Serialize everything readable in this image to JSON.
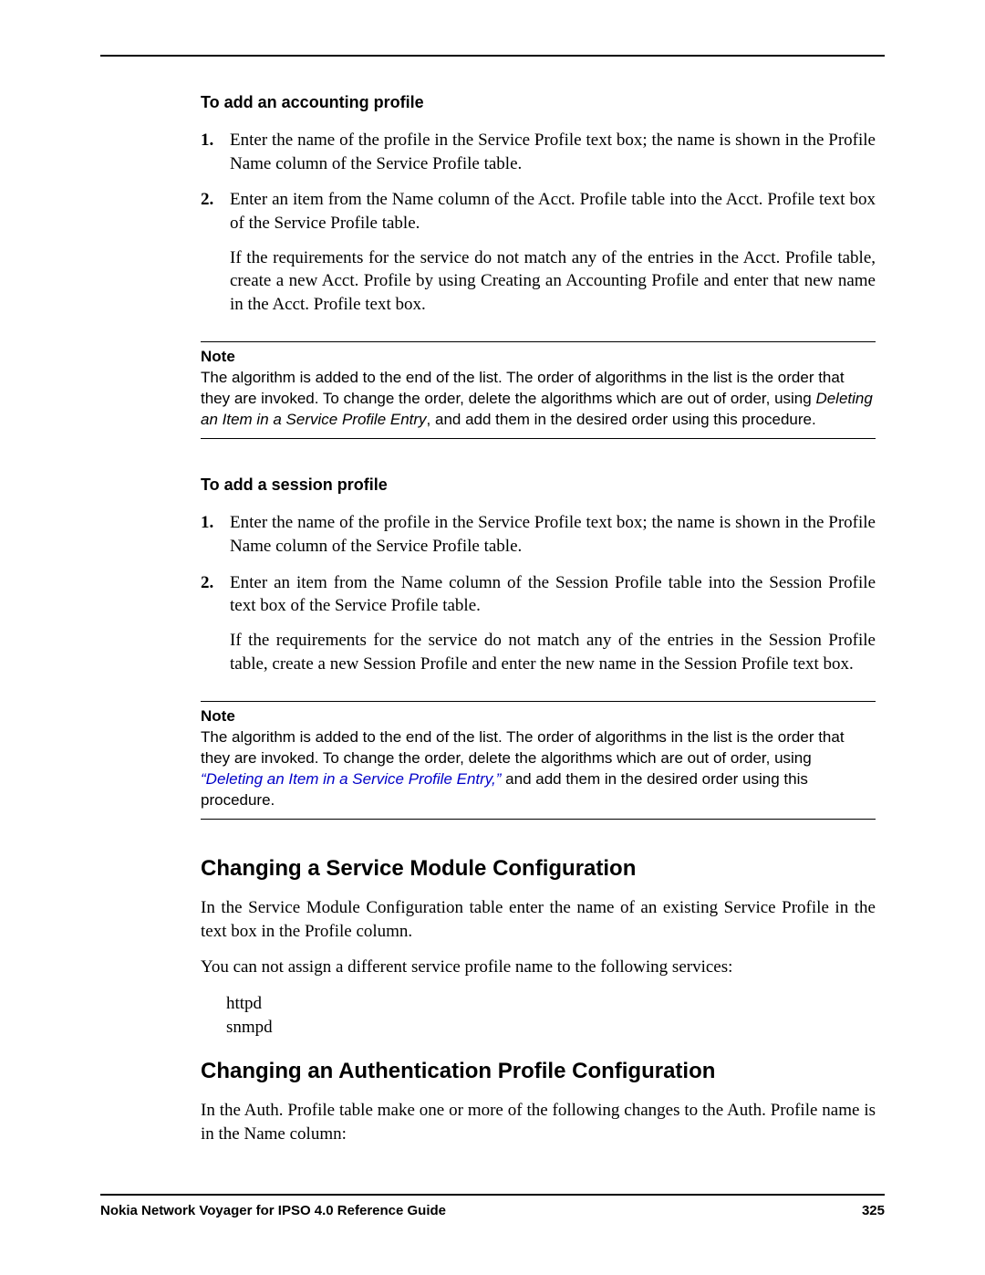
{
  "section1": {
    "heading": "To add an accounting profile",
    "steps": [
      {
        "text": "Enter the name of the profile in the Service Profile text box; the name is shown in the Profile Name column of the Service Profile table."
      },
      {
        "text": "Enter an item from the Name column of the Acct. Profile table into the Acct. Profile text box of the Service Profile table.",
        "para": "If the requirements for the service do not match any of the entries in the Acct. Profile table, create a new Acct. Profile by using Creating an Accounting Profile and enter that new name in the Acct. Profile text box."
      }
    ],
    "note": {
      "label": "Note",
      "pre": "The algorithm is added to the end of the list. The order of algorithms in the list is the order that they are invoked. To change the order, delete the algorithms which are out of order, using ",
      "italic": "Deleting an Item in a Service Profile Entry",
      "post": ", and add them in the desired order using this procedure."
    }
  },
  "section2": {
    "heading": "To add a session profile",
    "steps": [
      {
        "text": "Enter the name of the profile in the Service Profile text box; the name is shown in the Profile Name column of the Service Profile table."
      },
      {
        "text": "Enter an item from the Name column of the Session Profile table into the Session Profile text box of the Service Profile table.",
        "para": "If the requirements for the service do not match any of the entries in the Session Profile table, create a new Session Profile and enter the new name in the Session Profile text box."
      }
    ],
    "note": {
      "label": "Note",
      "pre": "The algorithm is added to the end of the list. The order of algorithms in the list is the order that they are invoked. To change the order, delete the algorithms which are out of order, using ",
      "link": "“Deleting an Item in a Service Profile Entry,”",
      "post": " and add them in the desired order using this procedure."
    }
  },
  "section3": {
    "heading": "Changing a Service Module Configuration",
    "p1": "In the Service Module Configuration table enter the name of an existing Service Profile in the text box in the Profile column.",
    "p2": "You can not assign a different service profile name to the following services:",
    "items": [
      "httpd",
      "snmpd"
    ]
  },
  "section4": {
    "heading": "Changing an Authentication Profile Configuration",
    "p1": "In the Auth. Profile table make one or more of the following changes to the Auth. Profile name is in the Name column:"
  },
  "footer": {
    "title": "Nokia Network Voyager for IPSO 4.0 Reference Guide",
    "page": "325"
  }
}
